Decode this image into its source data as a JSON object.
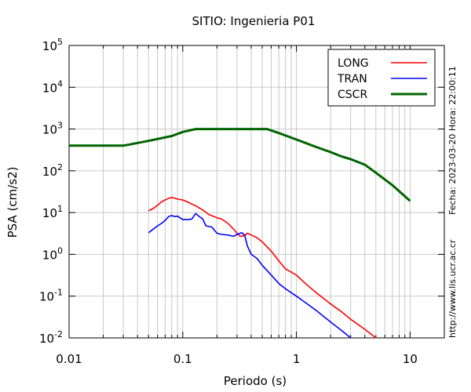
{
  "chart_data": {
    "type": "line",
    "title": "SITIO: Ingenieria P01",
    "xlabel": "Periodo (s)",
    "ylabel": "PSA (cm/s2)",
    "x_scale": "log",
    "y_scale": "log",
    "xlim": [
      0.01,
      20
    ],
    "ylim": [
      0.01,
      100000
    ],
    "grid": true,
    "legend_position": "top-right",
    "x_tick_labels": [
      "0.01",
      "0.1",
      "1",
      "10"
    ],
    "x_tick_values": [
      0.01,
      0.1,
      1,
      10
    ],
    "y_ticks": [
      {
        "value": 0.01,
        "base": "10",
        "exp": "-2"
      },
      {
        "value": 0.1,
        "base": "10",
        "exp": "-1"
      },
      {
        "value": 1,
        "base": "10",
        "exp": "0"
      },
      {
        "value": 10,
        "base": "10",
        "exp": "1"
      },
      {
        "value": 100,
        "base": "10",
        "exp": "2"
      },
      {
        "value": 1000,
        "base": "10",
        "exp": "3"
      },
      {
        "value": 10000,
        "base": "10",
        "exp": "4"
      },
      {
        "value": 100000,
        "base": "10",
        "exp": "5"
      }
    ],
    "side_notes": {
      "fecha": "Fecha: 2023-03-20 Hora: 22:00:11",
      "url": "http://www.lis.ucr.ac.cr"
    },
    "series": [
      {
        "name": "LONG",
        "color": "#ff0000",
        "x": [
          0.05,
          0.055,
          0.06,
          0.065,
          0.07,
          0.075,
          0.08,
          0.085,
          0.09,
          0.1,
          0.11,
          0.12,
          0.13,
          0.15,
          0.17,
          0.2,
          0.22,
          0.25,
          0.28,
          0.3,
          0.32,
          0.35,
          0.37,
          0.4,
          0.45,
          0.5,
          0.6,
          0.7,
          0.8,
          1.0,
          1.2,
          1.5,
          2.0,
          2.5,
          3.0,
          4.0,
          5.0
        ],
        "y": [
          11,
          12.5,
          15,
          18,
          20,
          22,
          23,
          22,
          21,
          20,
          18,
          16,
          14.5,
          11.5,
          9,
          7.5,
          7,
          5.5,
          4.0,
          3.2,
          2.7,
          2.8,
          3.2,
          2.9,
          2.5,
          2.0,
          1.2,
          0.7,
          0.45,
          0.32,
          0.2,
          0.12,
          0.065,
          0.042,
          0.028,
          0.016,
          0.01
        ]
      },
      {
        "name": "TRAN",
        "color": "#0000ff",
        "x": [
          0.05,
          0.055,
          0.06,
          0.065,
          0.07,
          0.075,
          0.08,
          0.085,
          0.09,
          0.1,
          0.11,
          0.12,
          0.13,
          0.14,
          0.15,
          0.16,
          0.18,
          0.2,
          0.22,
          0.25,
          0.28,
          0.3,
          0.33,
          0.35,
          0.37,
          0.4,
          0.45,
          0.5,
          0.6,
          0.7,
          0.8,
          1.0,
          1.2,
          1.5,
          2.0,
          2.5,
          3.0
        ],
        "y": [
          3.3,
          4.0,
          4.8,
          5.5,
          6.5,
          8,
          8.5,
          8,
          8.2,
          6.8,
          6.8,
          7.0,
          9.5,
          8.0,
          7.0,
          4.8,
          4.5,
          3.2,
          3.0,
          2.9,
          2.7,
          3.0,
          3.3,
          2.9,
          1.6,
          1.0,
          0.8,
          0.55,
          0.32,
          0.2,
          0.15,
          0.1,
          0.07,
          0.045,
          0.024,
          0.015,
          0.01
        ]
      },
      {
        "name": "CSCR",
        "color": "#006400",
        "x": [
          0.01,
          0.03,
          0.05,
          0.08,
          0.1,
          0.13,
          0.2,
          0.3,
          0.4,
          0.55,
          0.7,
          1.0,
          1.5,
          2.0,
          2.5,
          3.0,
          4.0,
          5.0,
          7.0,
          10.0
        ],
        "y": [
          400,
          400,
          520,
          680,
          850,
          1000,
          1000,
          1000,
          1000,
          1000,
          800,
          560,
          370,
          280,
          220,
          190,
          140,
          90,
          45,
          19
        ]
      }
    ]
  }
}
